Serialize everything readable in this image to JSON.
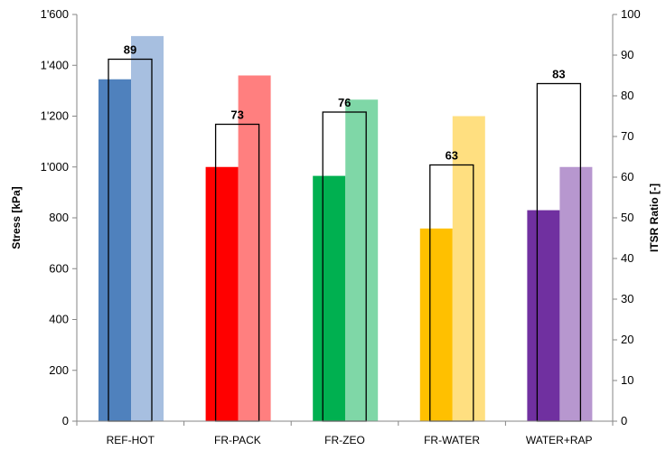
{
  "chart_data": {
    "type": "bar",
    "categories": [
      "REF-HOT",
      "FR-PACK",
      "FR-ZEO",
      "FR-WATER",
      "WATER+RAP"
    ],
    "series": [
      {
        "axis": "left",
        "values": [
          1345,
          1000,
          965,
          758,
          830
        ],
        "colors": [
          "#4f81bd",
          "#ff0000",
          "#00b050",
          "#ffc000",
          "#7030a0"
        ]
      },
      {
        "axis": "left",
        "values": [
          1515,
          1360,
          1265,
          1200,
          1000
        ],
        "colors": [
          "#a7bfe0",
          "#ff7f7f",
          "#7fd7a7",
          "#ffdf80",
          "#b797cf"
        ]
      },
      {
        "axis": "right",
        "values": [
          89,
          73,
          76,
          63,
          83
        ],
        "style": "outline"
      }
    ],
    "data_labels": [
      "89",
      "73",
      "76",
      "63",
      "83"
    ],
    "ylabel": "Stress  [kPa]",
    "y2label": "ITSR Ratio [-]",
    "ylim": [
      0,
      1600
    ],
    "y2lim": [
      0,
      100
    ],
    "yticks": [
      "0",
      "200",
      "400",
      "600",
      "800",
      "1'000",
      "1'200",
      "1'400",
      "1'600"
    ],
    "y2ticks": [
      "0",
      "10",
      "20",
      "30",
      "40",
      "50",
      "60",
      "70",
      "80",
      "90",
      "100"
    ],
    "grid": false,
    "legend": "none"
  }
}
